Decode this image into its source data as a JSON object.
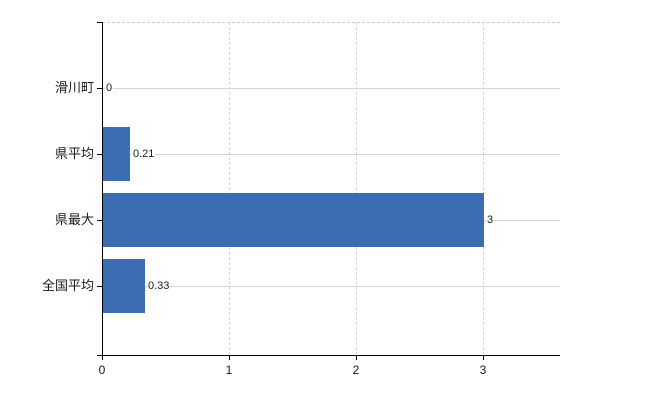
{
  "chart_data": {
    "type": "bar",
    "orientation": "horizontal",
    "title": "",
    "xlabel": "",
    "ylabel": "",
    "legend_position": "none",
    "grid": "on",
    "categories": [
      "滑川町",
      "県平均",
      "県最大",
      "全国平均"
    ],
    "values": [
      0,
      0.21,
      3,
      0.33
    ],
    "value_labels": [
      "0",
      "0.21",
      "3",
      "0.33"
    ],
    "x_ticks": [
      0,
      1,
      2,
      3
    ],
    "x_tick_labels": [
      "0",
      "1",
      "2",
      "3"
    ],
    "xlim": [
      0,
      3.6
    ],
    "colors": {
      "bar_fill": "#3c6db3",
      "axis_line": "#000000",
      "horizontal_gridline": "#d2d8ce",
      "vertical_gridline": "#d6d6d6",
      "plot_top_border": "#c8c8c8",
      "text": "#1a1a1a",
      "background": "#ffffff"
    }
  }
}
